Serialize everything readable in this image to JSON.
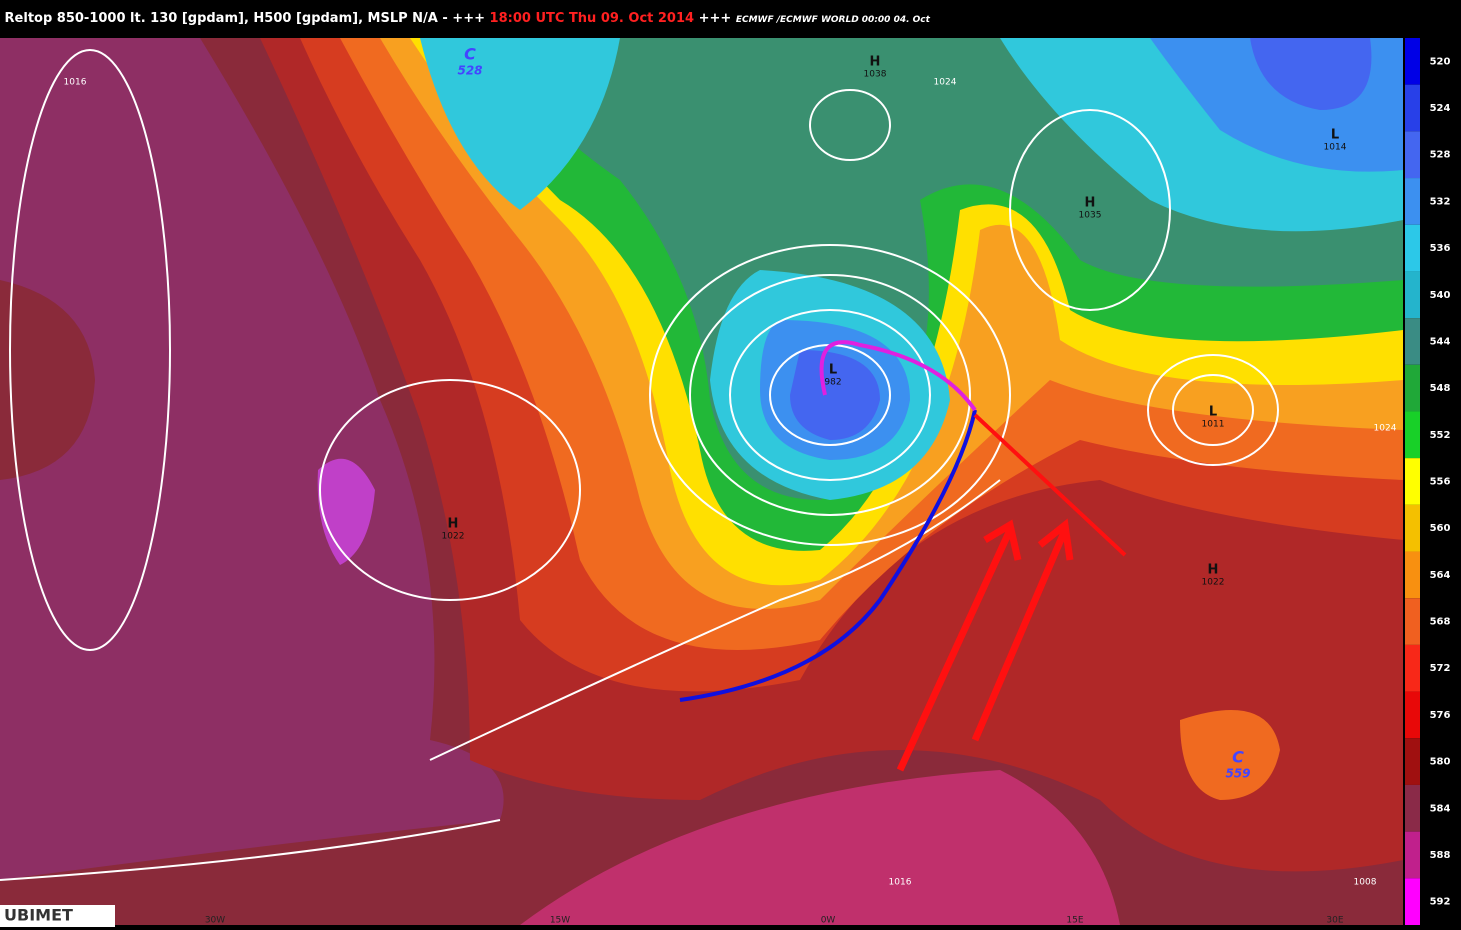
{
  "header": {
    "title": "Reltop 850-1000 lt. 130 [gpdam], H500 [gpdam], MSLP N/A - +++",
    "time": "18:00 UTC Thu 09. Oct 2014",
    "suffix": "+++",
    "model": "ECMWF /ECMWF WORLD 00:00 04. Oct"
  },
  "colorbar": {
    "levels": [
      520,
      524,
      528,
      532,
      536,
      540,
      544,
      548,
      552,
      556,
      560,
      564,
      568,
      572,
      576,
      580,
      584,
      588,
      592
    ],
    "colors": [
      "#0000e6",
      "#2840e8",
      "#4466f0",
      "#3c90f0",
      "#2cc8e8",
      "#24b4cc",
      "#3a8c84",
      "#20a838",
      "#18d028",
      "#ffff00",
      "#f4c000",
      "#f89010",
      "#f06020",
      "#f82818",
      "#e80808",
      "#a01010",
      "#8a2a48",
      "#c0208c",
      "#ff00ff"
    ]
  },
  "centers": [
    {
      "label": "C",
      "value": "528"
    },
    {
      "label": "H",
      "value": "1038"
    },
    {
      "label": "L",
      "value": "982"
    },
    {
      "label": "H",
      "value": "1035"
    },
    {
      "label": "L",
      "value": "1011"
    },
    {
      "label": "L",
      "value": "1014"
    },
    {
      "label": "H",
      "value": "1022"
    },
    {
      "label": "H",
      "value": "1022"
    },
    {
      "label": "C",
      "value": "559"
    }
  ],
  "isobar_labels": [
    "1016",
    "1016",
    "1008",
    "1024",
    "1024"
  ],
  "longitudes": [
    "30W",
    "15W",
    "0W",
    "15E",
    "30E"
  ],
  "logo": "UBIMET"
}
